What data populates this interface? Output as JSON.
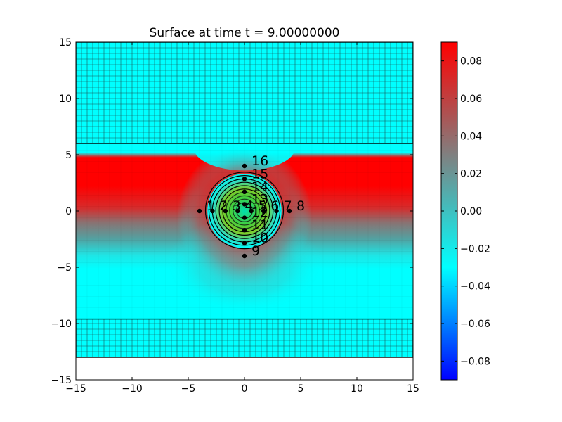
{
  "chart_data": {
    "type": "heatmap",
    "title": "Surface at time t =     9.00000000",
    "xlim": [
      -15,
      15
    ],
    "ylim": [
      -15,
      15
    ],
    "xticks": [
      -15,
      -10,
      -5,
      0,
      5,
      10,
      15
    ],
    "yticks": [
      -15,
      -10,
      -5,
      0,
      5,
      10,
      15
    ],
    "xtick_labels": [
      "−15",
      "−10",
      "−5",
      "0",
      "5",
      "10",
      "15"
    ],
    "ytick_labels": [
      "−15",
      "−10",
      "−5",
      "0",
      "5",
      "10",
      "15"
    ],
    "colorbar": {
      "range": [
        -0.09,
        0.09
      ],
      "ticks": [
        -0.08,
        -0.06,
        -0.04,
        -0.02,
        0.0,
        0.02,
        0.04,
        0.06,
        0.08
      ],
      "tick_labels": [
        "−0.08",
        "−0.06",
        "−0.04",
        "−0.02",
        "0.00",
        "0.02",
        "0.04",
        "0.06",
        "0.08"
      ],
      "colors": [
        "#0000ff",
        "#00ffff",
        "#808080",
        "#ff0000"
      ]
    },
    "fine_grid_regions": [
      {
        "x": [
          -15,
          15
        ],
        "y": [
          6,
          15
        ]
      },
      {
        "x": [
          -15,
          15
        ],
        "y": [
          -13,
          -9.6
        ]
      }
    ],
    "coarse_region": {
      "x": [
        -15,
        15
      ],
      "y": [
        -9.6,
        6
      ]
    },
    "data_extent_y": [
      -13,
      15
    ],
    "surface_features": {
      "red_band_y": [
        1.2,
        4.8
      ],
      "depression_center": [
        0,
        1
      ],
      "central_bump_center": [
        0,
        0
      ],
      "central_bump_radius": 3.3
    },
    "gauges": [
      {
        "id": "1",
        "x": -4.0,
        "y": 0.0
      },
      {
        "id": "2",
        "x": -2.85,
        "y": 0.0
      },
      {
        "id": "3",
        "x": -1.7,
        "y": 0.0
      },
      {
        "id": "4",
        "x": -0.6,
        "y": 0.0
      },
      {
        "id": "5",
        "x": 0.6,
        "y": 0.0
      },
      {
        "id": "6",
        "x": 1.7,
        "y": 0.0
      },
      {
        "id": "7",
        "x": 2.85,
        "y": 0.0
      },
      {
        "id": "8",
        "x": 4.0,
        "y": 0.0
      },
      {
        "id": "9",
        "x": 0.0,
        "y": -4.0
      },
      {
        "id": "10",
        "x": 0.0,
        "y": -2.85
      },
      {
        "id": "11",
        "x": 0.0,
        "y": -1.7
      },
      {
        "id": "12",
        "x": 0.0,
        "y": -0.6
      },
      {
        "id": "13",
        "x": 0.0,
        "y": 0.6
      },
      {
        "id": "14",
        "x": 0.0,
        "y": 1.7
      },
      {
        "id": "15",
        "x": 0.0,
        "y": 2.85
      },
      {
        "id": "16",
        "x": 0.0,
        "y": 4.0
      }
    ],
    "grid": true
  }
}
